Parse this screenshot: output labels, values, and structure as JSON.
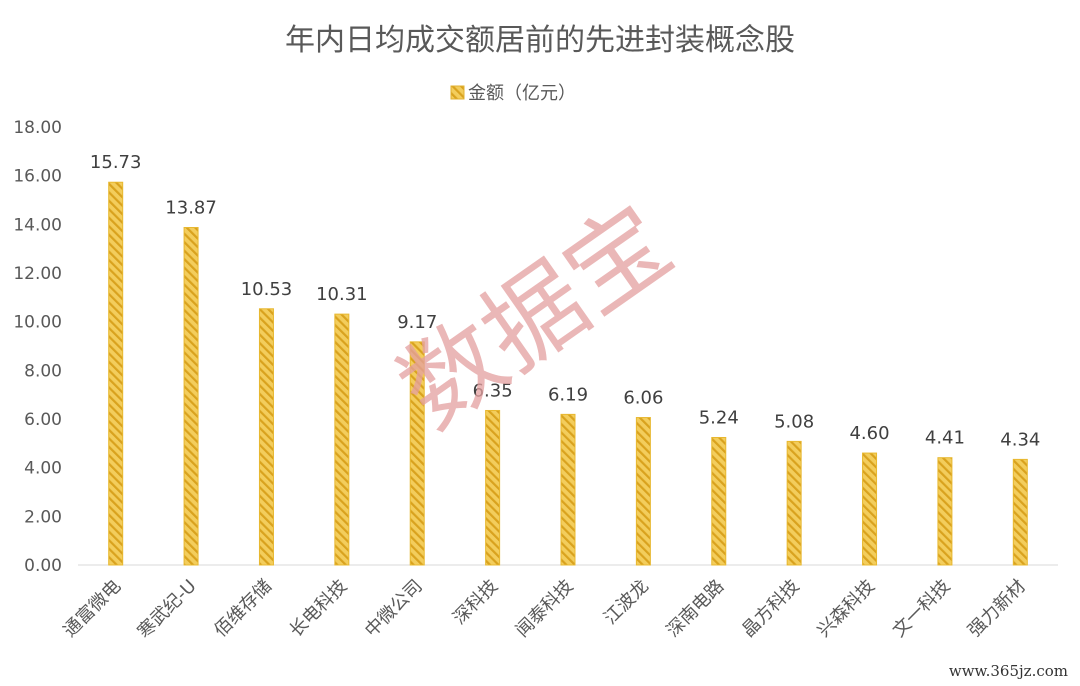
{
  "chart_data": {
    "type": "bar",
    "title": "年内日均成交额居前的先进封装概念股",
    "categories": [
      "通富微电",
      "寒武纪-U",
      "佰维存储",
      "长电科技",
      "中微公司",
      "深科技",
      "闻泰科技",
      "江波龙",
      "深南电路",
      "晶方科技",
      "兴森科技",
      "文一科技",
      "强力新材"
    ],
    "series": [
      {
        "name": "金额（亿元）",
        "values": [
          15.73,
          13.87,
          10.53,
          10.31,
          9.17,
          6.35,
          6.19,
          6.06,
          5.24,
          5.08,
          4.6,
          4.41,
          4.34
        ]
      }
    ],
    "data_labels": [
      "15.73",
      "13.87",
      "10.53",
      "10.31",
      "9.17",
      "6.35",
      "6.19",
      "6.06",
      "5.24",
      "5.08",
      "4.60",
      "4.41",
      "4.34"
    ],
    "y_ticks": [
      "0.00",
      "2.00",
      "4.00",
      "6.00",
      "8.00",
      "10.00",
      "12.00",
      "14.00",
      "16.00",
      "18.00"
    ],
    "ylim": [
      0,
      18
    ],
    "legend_position": "top",
    "grid": false,
    "bar_color": "#f0c040",
    "bar_stripe_color": "#d9a21e"
  },
  "watermark": "数据宝",
  "site_label": "www.365jz.com"
}
